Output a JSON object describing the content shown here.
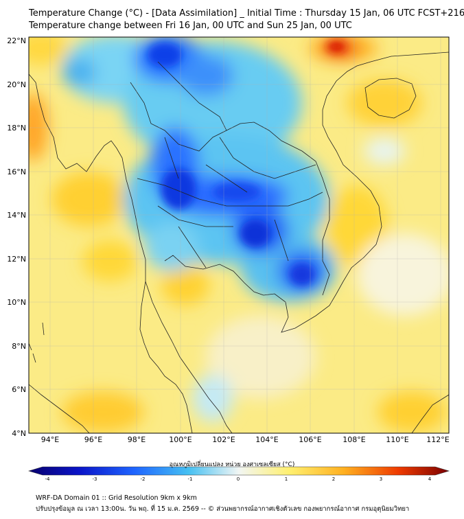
{
  "title_line1": "Temperature Change (°C) - [Data Assimilation] _ Initial Time : Thursday 15 Jan, 06 UTC FCST+216",
  "title_line2": "Temperature change between Fri 16 Jan, 00 UTC and Sun 25 Jan, 00 UTC",
  "axes": {
    "lat_labels": [
      "22°N",
      "20°N",
      "18°N",
      "16°N",
      "14°N",
      "12°N",
      "10°N",
      "8°N",
      "6°N",
      "4°N"
    ],
    "lon_labels": [
      "94°E",
      "96°E",
      "98°E",
      "100°E",
      "102°E",
      "104°E",
      "106°E",
      "108°E",
      "110°E",
      "112°E"
    ]
  },
  "colorbar": {
    "label": "อุณหภูมิเปลี่ยนแปลง หน่วย องศาเซลเซียส (°C)",
    "ticks": [
      "-4",
      "-3",
      "-2",
      "-1",
      "0",
      "1",
      "2",
      "3",
      "4"
    ],
    "min": -4,
    "max": 4
  },
  "footer_line1": "WRF-DA Domain 01 :: Grid Resolution 9km x 9km",
  "footer_line2": "ปรับปรุงข้อมูล ณ เวลา 13:00น. วัน พฤ. ที่ 15 ม.ค. 2569 -- © ส่วนพยากรณ์อากาศเชิงตัวเลข กองพยากรณ์อากาศ กรมอุตุนิยมวิทยา",
  "colors": {
    "cold_extreme": "#0a0aa8",
    "cold": "#1e6eff",
    "cool": "#48c8f0",
    "neutral": "#f4f4f0",
    "warm": "#ffe860",
    "hot": "#ff9a10",
    "hot_extreme": "#e02000"
  }
}
